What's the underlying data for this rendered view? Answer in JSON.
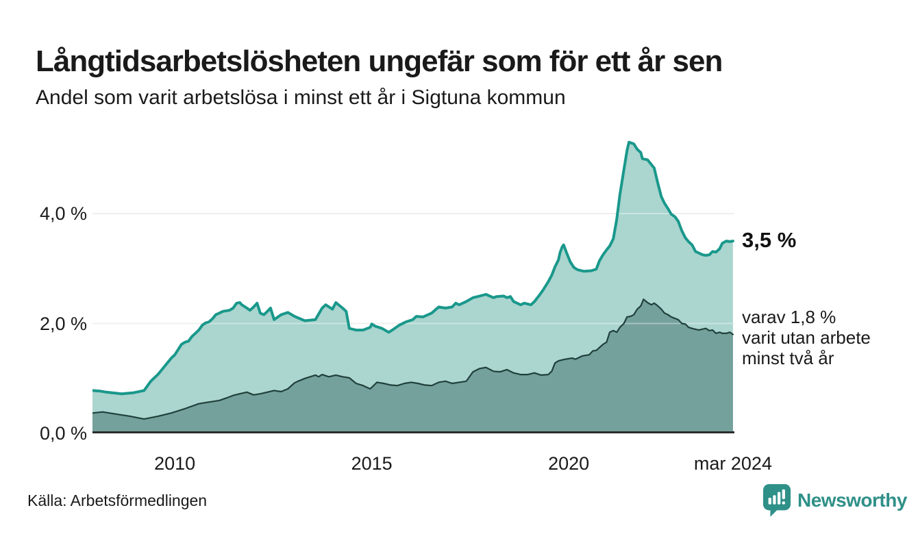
{
  "header": {
    "title": "Långtidsarbetslösheten ungefär som för ett år sen",
    "subtitle": "Andel som varit arbetslösa i minst ett år i Sigtuna kommun"
  },
  "footer": {
    "source": "Källa: Arbetsförmedlingen",
    "brand": "Newsworthy"
  },
  "colors": {
    "background": "#ffffff",
    "text": "#1a1a1a",
    "grid": "#e6e6e6",
    "axis": "#2b2b2b",
    "line_total": "#19988b",
    "fill_total": "#abd5cf",
    "line_two_year": "#20403c",
    "fill_two_year": "#74a19b",
    "brand_teal": "#2f9088"
  },
  "chart_data": {
    "type": "area",
    "title": "Långtidsarbetslösheten ungefär som för ett år sen",
    "subtitle": "Andel som varit arbetslösa i minst ett år i Sigtuna kommun",
    "unit": "%",
    "grid": "horizontal",
    "legend_position": "none",
    "x_range": [
      2007.91,
      2024.17
    ],
    "y_range": [
      0,
      5.45
    ],
    "x_ticks": [
      {
        "label": "2010",
        "x": 2010
      },
      {
        "label": "2015",
        "x": 2015
      },
      {
        "label": "2020",
        "x": 2020
      },
      {
        "label": "mar 2024",
        "x": 2024.17
      }
    ],
    "y_ticks": [
      {
        "label": "0,0 %",
        "v": 0
      },
      {
        "label": "2,0 %",
        "v": 2
      },
      {
        "label": "4,0 %",
        "v": 4
      }
    ],
    "annotations": {
      "end_total": "3,5 %",
      "end_sub_lines": [
        "varav 1,8 %",
        "varit utan arbete",
        "minst två år"
      ]
    },
    "series": [
      {
        "name": "Andel arbetslösa minst ett år",
        "end_value": 3.5,
        "points": [
          [
            2007.91,
            0.78
          ],
          [
            2008.1,
            0.77
          ],
          [
            2008.26,
            0.75
          ],
          [
            2008.65,
            0.72
          ],
          [
            2008.96,
            0.74
          ],
          [
            2009.22,
            0.78
          ],
          [
            2009.39,
            0.95
          ],
          [
            2009.57,
            1.07
          ],
          [
            2009.74,
            1.22
          ],
          [
            2009.91,
            1.37
          ],
          [
            2010.0,
            1.43
          ],
          [
            2010.09,
            1.53
          ],
          [
            2010.17,
            1.62
          ],
          [
            2010.26,
            1.66
          ],
          [
            2010.35,
            1.68
          ],
          [
            2010.43,
            1.76
          ],
          [
            2010.52,
            1.82
          ],
          [
            2010.61,
            1.88
          ],
          [
            2010.7,
            1.97
          ],
          [
            2010.78,
            2.01
          ],
          [
            2010.87,
            2.03
          ],
          [
            2010.96,
            2.09
          ],
          [
            2011.04,
            2.16
          ],
          [
            2011.13,
            2.19
          ],
          [
            2011.22,
            2.22
          ],
          [
            2011.39,
            2.24
          ],
          [
            2011.48,
            2.28
          ],
          [
            2011.57,
            2.37
          ],
          [
            2011.65,
            2.38
          ],
          [
            2011.7,
            2.34
          ],
          [
            2011.83,
            2.28
          ],
          [
            2011.91,
            2.24
          ],
          [
            2012.0,
            2.3
          ],
          [
            2012.09,
            2.37
          ],
          [
            2012.17,
            2.19
          ],
          [
            2012.26,
            2.16
          ],
          [
            2012.35,
            2.22
          ],
          [
            2012.43,
            2.28
          ],
          [
            2012.52,
            2.07
          ],
          [
            2012.7,
            2.16
          ],
          [
            2012.87,
            2.2
          ],
          [
            2013.04,
            2.13
          ],
          [
            2013.3,
            2.05
          ],
          [
            2013.57,
            2.07
          ],
          [
            2013.74,
            2.28
          ],
          [
            2013.83,
            2.34
          ],
          [
            2014.0,
            2.26
          ],
          [
            2014.09,
            2.38
          ],
          [
            2014.26,
            2.28
          ],
          [
            2014.35,
            2.22
          ],
          [
            2014.43,
            1.91
          ],
          [
            2014.6,
            1.88
          ],
          [
            2014.78,
            1.88
          ],
          [
            2014.96,
            1.93
          ],
          [
            2015.0,
            1.99
          ],
          [
            2015.09,
            1.95
          ],
          [
            2015.26,
            1.91
          ],
          [
            2015.43,
            1.84
          ],
          [
            2015.52,
            1.88
          ],
          [
            2015.7,
            1.97
          ],
          [
            2015.87,
            2.03
          ],
          [
            2016.04,
            2.07
          ],
          [
            2016.13,
            2.13
          ],
          [
            2016.3,
            2.12
          ],
          [
            2016.52,
            2.19
          ],
          [
            2016.7,
            2.3
          ],
          [
            2016.87,
            2.28
          ],
          [
            2017.04,
            2.3
          ],
          [
            2017.13,
            2.37
          ],
          [
            2017.22,
            2.34
          ],
          [
            2017.4,
            2.4
          ],
          [
            2017.57,
            2.47
          ],
          [
            2017.74,
            2.5
          ],
          [
            2017.9,
            2.53
          ],
          [
            2018.09,
            2.47
          ],
          [
            2018.17,
            2.49
          ],
          [
            2018.35,
            2.5
          ],
          [
            2018.43,
            2.47
          ],
          [
            2018.52,
            2.49
          ],
          [
            2018.6,
            2.4
          ],
          [
            2018.78,
            2.34
          ],
          [
            2018.87,
            2.37
          ],
          [
            2019.04,
            2.34
          ],
          [
            2019.13,
            2.4
          ],
          [
            2019.26,
            2.52
          ],
          [
            2019.35,
            2.61
          ],
          [
            2019.48,
            2.76
          ],
          [
            2019.57,
            2.88
          ],
          [
            2019.65,
            3.03
          ],
          [
            2019.74,
            3.16
          ],
          [
            2019.78,
            3.29
          ],
          [
            2019.83,
            3.39
          ],
          [
            2019.87,
            3.43
          ],
          [
            2019.96,
            3.26
          ],
          [
            2020.04,
            3.12
          ],
          [
            2020.13,
            3.02
          ],
          [
            2020.22,
            2.98
          ],
          [
            2020.39,
            2.95
          ],
          [
            2020.57,
            2.96
          ],
          [
            2020.7,
            2.99
          ],
          [
            2020.78,
            3.14
          ],
          [
            2020.87,
            3.25
          ],
          [
            2020.96,
            3.34
          ],
          [
            2021.04,
            3.41
          ],
          [
            2021.13,
            3.54
          ],
          [
            2021.22,
            3.9
          ],
          [
            2021.3,
            4.35
          ],
          [
            2021.4,
            4.8
          ],
          [
            2021.48,
            5.15
          ],
          [
            2021.53,
            5.3
          ],
          [
            2021.65,
            5.27
          ],
          [
            2021.74,
            5.17
          ],
          [
            2021.83,
            5.11
          ],
          [
            2021.87,
            5.0
          ],
          [
            2022.0,
            4.98
          ],
          [
            2022.09,
            4.9
          ],
          [
            2022.17,
            4.83
          ],
          [
            2022.26,
            4.56
          ],
          [
            2022.35,
            4.31
          ],
          [
            2022.43,
            4.19
          ],
          [
            2022.52,
            4.09
          ],
          [
            2022.6,
            3.99
          ],
          [
            2022.7,
            3.94
          ],
          [
            2022.78,
            3.86
          ],
          [
            2022.87,
            3.69
          ],
          [
            2022.96,
            3.56
          ],
          [
            2023.04,
            3.49
          ],
          [
            2023.13,
            3.43
          ],
          [
            2023.22,
            3.31
          ],
          [
            2023.4,
            3.25
          ],
          [
            2023.48,
            3.24
          ],
          [
            2023.57,
            3.25
          ],
          [
            2023.65,
            3.31
          ],
          [
            2023.74,
            3.3
          ],
          [
            2023.83,
            3.36
          ],
          [
            2023.9,
            3.46
          ],
          [
            2024.0,
            3.5
          ],
          [
            2024.09,
            3.49
          ],
          [
            2024.17,
            3.5
          ]
        ]
      },
      {
        "name": "Varav utan arbete minst två år",
        "end_value": 1.8,
        "points": [
          [
            2007.91,
            0.37
          ],
          [
            2008.17,
            0.39
          ],
          [
            2008.52,
            0.35
          ],
          [
            2008.87,
            0.31
          ],
          [
            2009.22,
            0.26
          ],
          [
            2009.57,
            0.31
          ],
          [
            2009.91,
            0.37
          ],
          [
            2010.26,
            0.45
          ],
          [
            2010.61,
            0.54
          ],
          [
            2010.78,
            0.56
          ],
          [
            2011.13,
            0.6
          ],
          [
            2011.3,
            0.64
          ],
          [
            2011.48,
            0.69
          ],
          [
            2011.65,
            0.72
          ],
          [
            2011.83,
            0.75
          ],
          [
            2012.0,
            0.7
          ],
          [
            2012.17,
            0.72
          ],
          [
            2012.35,
            0.75
          ],
          [
            2012.52,
            0.78
          ],
          [
            2012.7,
            0.76
          ],
          [
            2012.87,
            0.81
          ],
          [
            2013.04,
            0.92
          ],
          [
            2013.13,
            0.95
          ],
          [
            2013.3,
            1.0
          ],
          [
            2013.48,
            1.04
          ],
          [
            2013.57,
            1.06
          ],
          [
            2013.65,
            1.03
          ],
          [
            2013.74,
            1.07
          ],
          [
            2013.91,
            1.03
          ],
          [
            2014.09,
            1.06
          ],
          [
            2014.26,
            1.03
          ],
          [
            2014.43,
            1.01
          ],
          [
            2014.6,
            0.91
          ],
          [
            2014.78,
            0.87
          ],
          [
            2014.96,
            0.81
          ],
          [
            2015.13,
            0.93
          ],
          [
            2015.3,
            0.91
          ],
          [
            2015.48,
            0.88
          ],
          [
            2015.65,
            0.87
          ],
          [
            2015.83,
            0.91
          ],
          [
            2016.0,
            0.93
          ],
          [
            2016.17,
            0.91
          ],
          [
            2016.35,
            0.88
          ],
          [
            2016.52,
            0.87
          ],
          [
            2016.7,
            0.93
          ],
          [
            2016.87,
            0.95
          ],
          [
            2017.04,
            0.91
          ],
          [
            2017.22,
            0.93
          ],
          [
            2017.4,
            0.95
          ],
          [
            2017.57,
            1.12
          ],
          [
            2017.74,
            1.18
          ],
          [
            2017.9,
            1.2
          ],
          [
            2018.09,
            1.13
          ],
          [
            2018.26,
            1.12
          ],
          [
            2018.43,
            1.16
          ],
          [
            2018.6,
            1.1
          ],
          [
            2018.78,
            1.07
          ],
          [
            2018.96,
            1.07
          ],
          [
            2019.13,
            1.1
          ],
          [
            2019.3,
            1.06
          ],
          [
            2019.48,
            1.07
          ],
          [
            2019.57,
            1.13
          ],
          [
            2019.65,
            1.28
          ],
          [
            2019.74,
            1.32
          ],
          [
            2019.91,
            1.35
          ],
          [
            2020.09,
            1.37
          ],
          [
            2020.17,
            1.35
          ],
          [
            2020.35,
            1.41
          ],
          [
            2020.52,
            1.43
          ],
          [
            2020.61,
            1.5
          ],
          [
            2020.7,
            1.51
          ],
          [
            2020.87,
            1.62
          ],
          [
            2020.96,
            1.66
          ],
          [
            2021.04,
            1.84
          ],
          [
            2021.13,
            1.87
          ],
          [
            2021.22,
            1.84
          ],
          [
            2021.3,
            1.93
          ],
          [
            2021.4,
            2.0
          ],
          [
            2021.48,
            2.12
          ],
          [
            2021.57,
            2.13
          ],
          [
            2021.65,
            2.16
          ],
          [
            2021.74,
            2.26
          ],
          [
            2021.83,
            2.32
          ],
          [
            2021.9,
            2.44
          ],
          [
            2022.0,
            2.38
          ],
          [
            2022.1,
            2.34
          ],
          [
            2022.17,
            2.37
          ],
          [
            2022.26,
            2.32
          ],
          [
            2022.35,
            2.26
          ],
          [
            2022.43,
            2.19
          ],
          [
            2022.52,
            2.16
          ],
          [
            2022.6,
            2.12
          ],
          [
            2022.78,
            2.07
          ],
          [
            2022.87,
            2.0
          ],
          [
            2022.96,
            1.99
          ],
          [
            2023.04,
            1.93
          ],
          [
            2023.13,
            1.91
          ],
          [
            2023.3,
            1.88
          ],
          [
            2023.48,
            1.91
          ],
          [
            2023.57,
            1.87
          ],
          [
            2023.65,
            1.88
          ],
          [
            2023.74,
            1.82
          ],
          [
            2023.83,
            1.84
          ],
          [
            2023.9,
            1.82
          ],
          [
            2024.0,
            1.82
          ],
          [
            2024.09,
            1.84
          ],
          [
            2024.17,
            1.8
          ]
        ]
      }
    ]
  }
}
